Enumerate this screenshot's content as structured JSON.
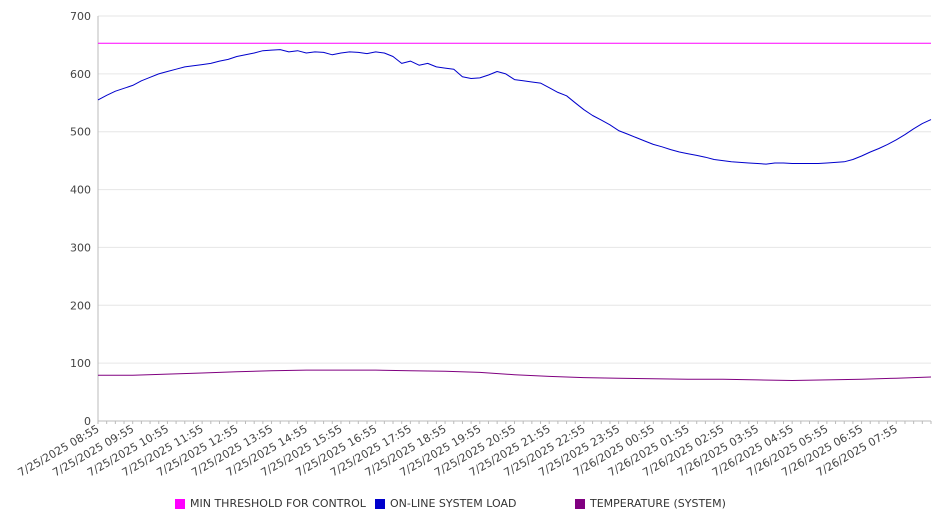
{
  "chart_data": {
    "type": "line",
    "title": "",
    "xlabel": "",
    "ylabel": "",
    "ylim": [
      0,
      700
    ],
    "yticks": [
      0,
      100,
      200,
      300,
      400,
      500,
      600,
      700
    ],
    "x_tick_labels": [
      "7/25/2025 08:55",
      "7/25/2025 09:55",
      "7/25/2025 10:55",
      "7/25/2025 11:55",
      "7/25/2025 12:55",
      "7/25/2025 13:55",
      "7/25/2025 14:55",
      "7/25/2025 15:55",
      "7/25/2025 16:55",
      "7/25/2025 17:55",
      "7/25/2025 18:55",
      "7/25/2025 19:55",
      "7/25/2025 20:55",
      "7/25/2025 21:55",
      "7/25/2025 22:55",
      "7/25/2025 23:55",
      "7/26/2025 00:55",
      "7/26/2025 01:55",
      "7/26/2025 02:55",
      "7/26/2025 03:55",
      "7/26/2025 04:55",
      "7/26/2025 05:55",
      "7/26/2025 06:55",
      "7/26/2025 07:55"
    ],
    "x_range_hours": [
      0,
      24
    ],
    "grid": true,
    "legend_position": "bottom",
    "series": [
      {
        "name": "MIN THRESHOLD FOR CONTROL",
        "color": "#ff00ff",
        "points": [
          [
            0,
            653
          ],
          [
            24,
            653
          ]
        ]
      },
      {
        "name": "ON-LINE SYSTEM LOAD",
        "color": "#0000cc",
        "points": [
          [
            0,
            555
          ],
          [
            0.25,
            563
          ],
          [
            0.5,
            570
          ],
          [
            0.75,
            575
          ],
          [
            1,
            580
          ],
          [
            1.25,
            588
          ],
          [
            1.5,
            594
          ],
          [
            1.75,
            600
          ],
          [
            2,
            604
          ],
          [
            2.25,
            608
          ],
          [
            2.5,
            612
          ],
          [
            2.75,
            614
          ],
          [
            3,
            616
          ],
          [
            3.25,
            618
          ],
          [
            3.5,
            622
          ],
          [
            3.75,
            625
          ],
          [
            4,
            630
          ],
          [
            4.25,
            633
          ],
          [
            4.5,
            636
          ],
          [
            4.75,
            640
          ],
          [
            5,
            641
          ],
          [
            5.25,
            642
          ],
          [
            5.5,
            638
          ],
          [
            5.75,
            640
          ],
          [
            6,
            636
          ],
          [
            6.25,
            638
          ],
          [
            6.5,
            637
          ],
          [
            6.75,
            633
          ],
          [
            7,
            636
          ],
          [
            7.25,
            638
          ],
          [
            7.5,
            637
          ],
          [
            7.75,
            635
          ],
          [
            8,
            638
          ],
          [
            8.25,
            636
          ],
          [
            8.5,
            630
          ],
          [
            8.75,
            618
          ],
          [
            9,
            622
          ],
          [
            9.25,
            615
          ],
          [
            9.5,
            618
          ],
          [
            9.75,
            612
          ],
          [
            10,
            610
          ],
          [
            10.25,
            608
          ],
          [
            10.5,
            595
          ],
          [
            10.75,
            592
          ],
          [
            11,
            593
          ],
          [
            11.25,
            598
          ],
          [
            11.5,
            604
          ],
          [
            11.75,
            600
          ],
          [
            12,
            590
          ],
          [
            12.25,
            588
          ],
          [
            12.5,
            586
          ],
          [
            12.75,
            584
          ],
          [
            13,
            576
          ],
          [
            13.25,
            568
          ],
          [
            13.5,
            562
          ],
          [
            13.75,
            550
          ],
          [
            14,
            538
          ],
          [
            14.25,
            528
          ],
          [
            14.5,
            520
          ],
          [
            14.75,
            512
          ],
          [
            15,
            502
          ],
          [
            15.25,
            496
          ],
          [
            15.5,
            490
          ],
          [
            15.75,
            484
          ],
          [
            16,
            478
          ],
          [
            16.25,
            474
          ],
          [
            16.5,
            469
          ],
          [
            16.75,
            465
          ],
          [
            17,
            462
          ],
          [
            17.25,
            459
          ],
          [
            17.5,
            456
          ],
          [
            17.75,
            452
          ],
          [
            18,
            450
          ],
          [
            18.25,
            448
          ],
          [
            18.5,
            447
          ],
          [
            18.75,
            446
          ],
          [
            19,
            445
          ],
          [
            19.25,
            444
          ],
          [
            19.5,
            446
          ],
          [
            19.75,
            446
          ],
          [
            20,
            445
          ],
          [
            20.25,
            445
          ],
          [
            20.5,
            445
          ],
          [
            20.75,
            445
          ],
          [
            21,
            446
          ],
          [
            21.25,
            447
          ],
          [
            21.5,
            448
          ],
          [
            21.75,
            452
          ],
          [
            22,
            458
          ],
          [
            22.25,
            465
          ],
          [
            22.5,
            471
          ],
          [
            22.75,
            478
          ],
          [
            23,
            486
          ],
          [
            23.25,
            495
          ],
          [
            23.5,
            505
          ],
          [
            23.75,
            514
          ],
          [
            24,
            521
          ]
        ]
      },
      {
        "name": "TEMPERATURE (SYSTEM)",
        "color": "#800080",
        "points": [
          [
            0,
            79
          ],
          [
            1,
            79
          ],
          [
            2,
            81
          ],
          [
            3,
            83
          ],
          [
            4,
            85
          ],
          [
            5,
            87
          ],
          [
            6,
            88
          ],
          [
            7,
            88
          ],
          [
            8,
            88
          ],
          [
            9,
            87
          ],
          [
            10,
            86
          ],
          [
            11,
            84
          ],
          [
            12,
            80
          ],
          [
            13,
            77
          ],
          [
            14,
            75
          ],
          [
            15,
            74
          ],
          [
            16,
            73
          ],
          [
            17,
            72
          ],
          [
            18,
            72
          ],
          [
            19,
            71
          ],
          [
            20,
            70
          ],
          [
            21,
            71
          ],
          [
            22,
            72
          ],
          [
            23,
            74
          ],
          [
            24,
            76
          ]
        ]
      }
    ]
  }
}
